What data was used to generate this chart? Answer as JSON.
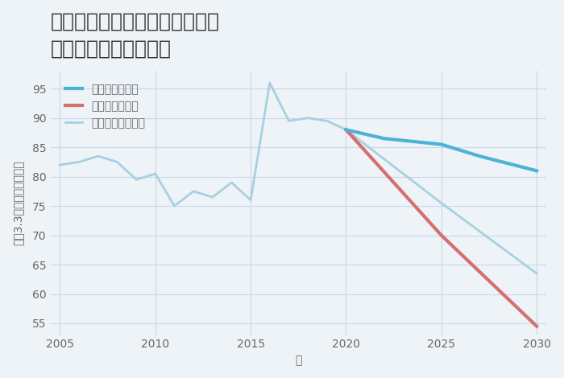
{
  "title_line1": "兵庫県たつの市揖保川町馬場の",
  "title_line2": "中古戸建ての価格推移",
  "xlabel": "年",
  "ylabel": "坪（3.3㎡）単価（万円）",
  "background_color": "#eef3f8",
  "plot_bg_color": "#eef3f8",
  "grid_color": "#c5d8e8",
  "xlim": [
    2004.5,
    2030.5
  ],
  "ylim": [
    53,
    98
  ],
  "yticks": [
    55,
    60,
    65,
    70,
    75,
    80,
    85,
    90,
    95
  ],
  "xticks": [
    2005,
    2010,
    2015,
    2020,
    2025,
    2030
  ],
  "normal_scenario": {
    "x": [
      2005,
      2006,
      2007,
      2008,
      2009,
      2010,
      2011,
      2012,
      2013,
      2014,
      2015,
      2016,
      2017,
      2018,
      2019,
      2020
    ],
    "y": [
      82,
      82.5,
      83.5,
      82.5,
      79.5,
      80.5,
      75,
      77.5,
      76.5,
      79,
      76,
      96,
      89.5,
      90,
      89.5,
      88
    ],
    "color": "#a8d0e0",
    "linewidth": 2.0,
    "label": "ノーマルシナリオ"
  },
  "normal_future": {
    "x": [
      2020,
      2025,
      2030
    ],
    "y": [
      88,
      75.5,
      63.5
    ],
    "color": "#a8d0e0",
    "linewidth": 2.0
  },
  "good_scenario": {
    "x": [
      2020,
      2022,
      2025,
      2027,
      2030
    ],
    "y": [
      88,
      86.5,
      85.5,
      83.5,
      81
    ],
    "color": "#4db3d4",
    "linewidth": 3.0,
    "label": "グッドシナリオ"
  },
  "bad_scenario": {
    "x": [
      2020,
      2025,
      2030
    ],
    "y": [
      88,
      70,
      54.5
    ],
    "color": "#d47070",
    "linewidth": 3.0,
    "label": "バッドシナリオ"
  },
  "title_fontsize": 18,
  "axis_fontsize": 10,
  "tick_fontsize": 10,
  "legend_fontsize": 10
}
